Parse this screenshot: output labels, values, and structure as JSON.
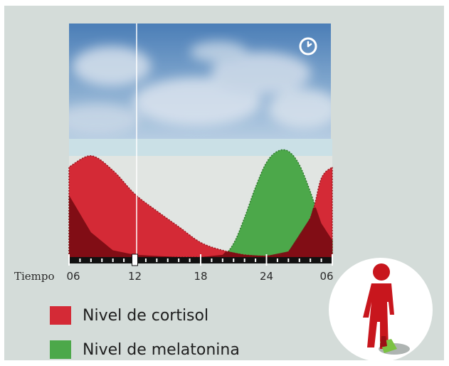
{
  "colors": {
    "panel_bg": "#d4dcd9",
    "cortisol": "#d42a36",
    "melatonin": "#4ca84a",
    "dark_fill": "#7a0b12",
    "figure": "#c8161d"
  },
  "icons": [
    "clock-icon",
    "standing-person-icon"
  ],
  "chart_data": {
    "type": "area",
    "xlabel": "Tiempo",
    "x_ticks": [
      "06",
      "12",
      "18",
      "24",
      "06"
    ],
    "x_range_hours": [
      6,
      30
    ],
    "current_time_marker": 12,
    "ylabel": "",
    "series": [
      {
        "name": "Nivel de cortisol",
        "x": [
          6,
          8,
          10,
          12,
          14,
          16,
          18,
          20,
          22,
          24,
          26,
          28,
          29,
          30
        ],
        "y": [
          0.8,
          0.9,
          0.77,
          0.56,
          0.41,
          0.27,
          0.13,
          0.06,
          0.02,
          0.01,
          0.05,
          0.35,
          0.7,
          0.8
        ]
      },
      {
        "name": "Nivel de melatonina",
        "x": [
          6,
          8,
          10,
          12,
          14,
          16,
          18,
          20,
          21,
          22,
          23,
          24,
          25,
          26,
          27,
          28,
          29,
          30
        ],
        "y": [
          0.55,
          0.22,
          0.06,
          0.02,
          0.01,
          0.0,
          0.0,
          0.02,
          0.12,
          0.35,
          0.62,
          0.84,
          0.94,
          0.94,
          0.82,
          0.58,
          0.3,
          0.15
        ]
      }
    ],
    "legend": [
      {
        "label": "Nivel de cortisol",
        "color": "#d42a36"
      },
      {
        "label": "Nivel de melatonina",
        "color": "#4ca84a"
      }
    ]
  }
}
